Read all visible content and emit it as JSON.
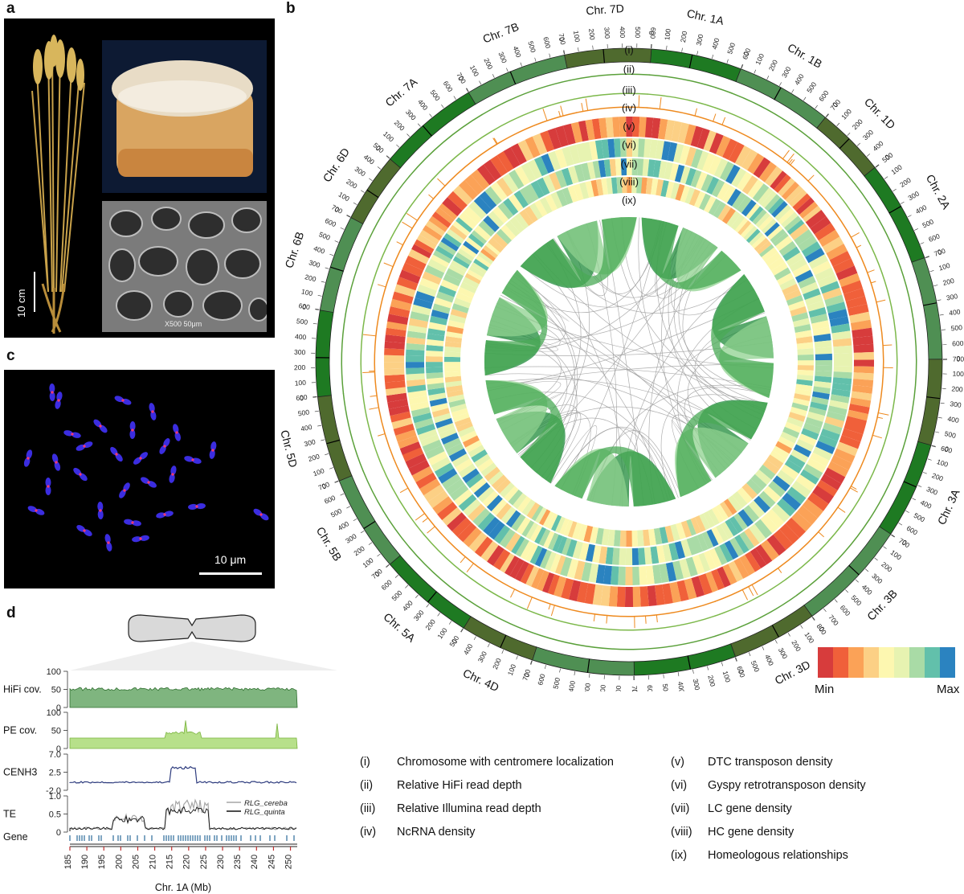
{
  "panels": {
    "a": "a",
    "b": "b",
    "c": "c",
    "d": "d"
  },
  "panel_a": {
    "scale_label": "10 cm",
    "sem_scale_text": "X500  50μm"
  },
  "panel_c": {
    "scale_label": "10 μm"
  },
  "panel_b": {
    "track_labels": [
      "(i)",
      "(ii)",
      "(iii)",
      "(iv)",
      "(v)",
      "(vi)",
      "(vii)",
      "(viii)",
      "(ix)"
    ],
    "chromosomes": [
      {
        "name": "Chr. 1A",
        "ticks": [
          "0",
          "100",
          "200",
          "300",
          "400",
          "500",
          "600"
        ],
        "color": "#1e7a22"
      },
      {
        "name": "Chr. 1B",
        "ticks": [
          "0",
          "100",
          "200",
          "300",
          "400",
          "500",
          "600",
          "700"
        ],
        "color": "#4f8f53"
      },
      {
        "name": "Chr. 1D",
        "ticks": [
          "0",
          "100",
          "200",
          "300",
          "400",
          "500"
        ],
        "color": "#4f6a2e"
      },
      {
        "name": "Chr. 2A",
        "ticks": [
          "0",
          "100",
          "200",
          "300",
          "400",
          "500",
          "600",
          "700"
        ],
        "color": "#1e7a22"
      },
      {
        "name": "Chr. 2B",
        "ticks": [
          "0",
          "100",
          "200",
          "300",
          "400",
          "500",
          "600",
          "700"
        ],
        "color": "#4f8f53"
      },
      {
        "name": "Chr. 2D",
        "ticks": [
          "0",
          "100",
          "200",
          "300",
          "400",
          "500",
          "600"
        ],
        "color": "#4f6a2e"
      },
      {
        "name": "Chr. 3A",
        "ticks": [
          "0",
          "100",
          "200",
          "300",
          "400",
          "500",
          "600",
          "700"
        ],
        "color": "#1e7a22"
      },
      {
        "name": "Chr. 3B",
        "ticks": [
          "0",
          "100",
          "200",
          "300",
          "400",
          "500",
          "600",
          "700",
          "800"
        ],
        "color": "#4f8f53"
      },
      {
        "name": "Chr. 3D",
        "ticks": [
          "0",
          "100",
          "200",
          "300",
          "400",
          "500",
          "600"
        ],
        "color": "#4f6a2e"
      },
      {
        "name": "Chr. 4A",
        "ticks": [
          "0",
          "100",
          "200",
          "300",
          "400",
          "500",
          "600",
          "700"
        ],
        "color": "#1e7a22"
      },
      {
        "name": "Chr. 4B",
        "ticks": [
          "0",
          "100",
          "200",
          "300",
          "400",
          "500",
          "600",
          "700"
        ],
        "color": "#4f8f53"
      },
      {
        "name": "Chr. 4D",
        "ticks": [
          "0",
          "100",
          "200",
          "300",
          "400",
          "500"
        ],
        "color": "#4f6a2e"
      },
      {
        "name": "Chr. 5A",
        "ticks": [
          "0",
          "100",
          "200",
          "300",
          "400",
          "500",
          "600",
          "700"
        ],
        "color": "#1e7a22"
      },
      {
        "name": "Chr. 5B",
        "ticks": [
          "0",
          "100",
          "200",
          "300",
          "400",
          "500",
          "600",
          "700"
        ],
        "color": "#4f8f53"
      },
      {
        "name": "Chr. 5D",
        "ticks": [
          "0",
          "100",
          "200",
          "300",
          "400",
          "500",
          "600"
        ],
        "color": "#4f6a2e"
      },
      {
        "name": "Chr. 6A",
        "ticks": [
          "0",
          "100",
          "200",
          "300",
          "400",
          "500",
          "600"
        ],
        "color": "#1e7a22"
      },
      {
        "name": "Chr. 6B",
        "ticks": [
          "0",
          "100",
          "200",
          "300",
          "400",
          "500",
          "600",
          "700"
        ],
        "color": "#4f8f53"
      },
      {
        "name": "Chr. 6D",
        "ticks": [
          "0",
          "100",
          "200",
          "300",
          "400",
          "500"
        ],
        "color": "#4f6a2e"
      },
      {
        "name": "Chr. 7A",
        "ticks": [
          "0",
          "100",
          "200",
          "300",
          "400",
          "500",
          "600",
          "700"
        ],
        "color": "#1e7a22"
      },
      {
        "name": "Chr. 7B",
        "ticks": [
          "0",
          "100",
          "200",
          "300",
          "400",
          "500",
          "600",
          "700"
        ],
        "color": "#4f8f53"
      },
      {
        "name": "Chr. 7D",
        "ticks": [
          "0",
          "100",
          "200",
          "300",
          "400",
          "500",
          "600"
        ],
        "color": "#4f6a2e"
      }
    ],
    "colorbar": {
      "colors": [
        "#d73c3c",
        "#f0603a",
        "#fba257",
        "#fcd085",
        "#fdf7b0",
        "#e7f3b1",
        "#a9dba6",
        "#62c0ab",
        "#2b83c0"
      ],
      "min_label": "Min",
      "max_label": "Max"
    }
  },
  "panel_d": {
    "tracks": [
      {
        "label": "HiFi cov.",
        "ticks": [
          "100",
          "50",
          "0"
        ]
      },
      {
        "label": "PE cov.",
        "ticks": [
          "100",
          "50",
          "0"
        ]
      },
      {
        "label": "CENH3",
        "ticks": [
          "7.0",
          "2.5",
          "-2.0"
        ]
      },
      {
        "label": "TE",
        "ticks": [
          "1.0",
          "0.5",
          "0"
        ]
      },
      {
        "label": "Gene",
        "ticks": []
      }
    ],
    "te_legend": [
      "RLG_cereba",
      "RLG_quinta"
    ],
    "x_ticks": [
      "185",
      "190",
      "195",
      "200",
      "205",
      "210",
      "215",
      "220",
      "225",
      "230",
      "235",
      "240",
      "245",
      "250"
    ],
    "x_label": "Chr. 1A (Mb)"
  },
  "legend": {
    "left": [
      {
        "num": "(i)",
        "text": "Chromosome with centromere localization"
      },
      {
        "num": "(ii)",
        "text": "Relative HiFi read depth"
      },
      {
        "num": "(iii)",
        "text": "Relative Illumina read depth"
      },
      {
        "num": "(iv)",
        "text": "NcRNA density"
      }
    ],
    "right": [
      {
        "num": "(v)",
        "text": "DTC transposon density"
      },
      {
        "num": "(vi)",
        "text": "Gyspy retrotransposon density"
      },
      {
        "num": "(vii)",
        "text": "LC gene density"
      },
      {
        "num": "(viii)",
        "text": "HC gene density"
      },
      {
        "num": "(ix)",
        "text": "Homeologous relationships"
      }
    ]
  }
}
